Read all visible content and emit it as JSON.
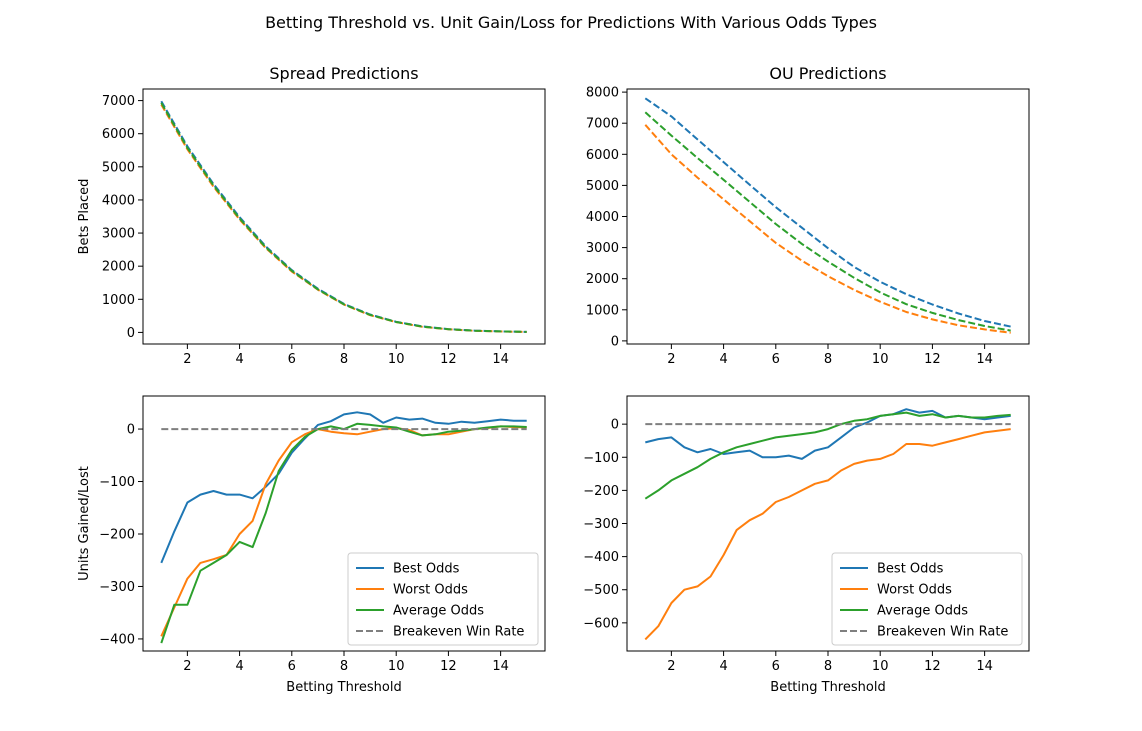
{
  "figure_title": "Betting Threshold vs. Unit Gain/Loss for Predictions With Various Odds Types",
  "colors": {
    "best": "#1f77b4",
    "worst": "#ff7f0e",
    "average": "#2ca02c",
    "breakeven": "#7f7f7f"
  },
  "chart_data": [
    {
      "id": "spread-bets",
      "type": "line",
      "title": "Spread Predictions",
      "xlabel": "",
      "ylabel": "Bets Placed",
      "xlim": [
        0.3,
        15.7
      ],
      "ylim": [
        -350,
        7350
      ],
      "xticks": [
        2,
        4,
        6,
        8,
        10,
        12,
        14
      ],
      "yticks": [
        0,
        1000,
        2000,
        3000,
        4000,
        5000,
        6000,
        7000
      ],
      "line_style": "dashed",
      "legend": false,
      "x": [
        1,
        2,
        3,
        4,
        5,
        6,
        7,
        8,
        9,
        10,
        11,
        12,
        13,
        14,
        15
      ],
      "series": [
        {
          "key": "best",
          "values": [
            6980,
            5620,
            4480,
            3480,
            2600,
            1880,
            1320,
            860,
            540,
            320,
            180,
            100,
            55,
            30,
            15
          ]
        },
        {
          "key": "worst",
          "values": [
            6880,
            5530,
            4400,
            3410,
            2550,
            1840,
            1290,
            840,
            520,
            310,
            170,
            95,
            50,
            28,
            13
          ]
        },
        {
          "key": "average",
          "values": [
            6930,
            5570,
            4440,
            3440,
            2570,
            1860,
            1300,
            845,
            530,
            315,
            175,
            97,
            52,
            29,
            14
          ]
        }
      ]
    },
    {
      "id": "ou-bets",
      "type": "line",
      "title": "OU Predictions",
      "xlabel": "",
      "ylabel": "",
      "xlim": [
        0.3,
        15.7
      ],
      "ylim": [
        -100,
        8100
      ],
      "xticks": [
        2,
        4,
        6,
        8,
        10,
        12,
        14
      ],
      "yticks": [
        0,
        1000,
        2000,
        3000,
        4000,
        5000,
        6000,
        7000,
        8000
      ],
      "line_style": "dashed",
      "legend": false,
      "x": [
        1,
        2,
        3,
        4,
        5,
        6,
        7,
        8,
        9,
        10,
        11,
        12,
        13,
        14,
        15
      ],
      "series": [
        {
          "key": "best",
          "values": [
            7800,
            7220,
            6480,
            5750,
            5020,
            4300,
            3640,
            2980,
            2380,
            1900,
            1500,
            1170,
            880,
            640,
            460
          ]
        },
        {
          "key": "worst",
          "values": [
            6950,
            6000,
            5250,
            4550,
            3850,
            3150,
            2580,
            2080,
            1640,
            1260,
            930,
            690,
            500,
            370,
            260
          ]
        },
        {
          "key": "average",
          "values": [
            7350,
            6600,
            5880,
            5180,
            4470,
            3760,
            3120,
            2550,
            2030,
            1560,
            1180,
            900,
            670,
            480,
            330
          ]
        }
      ]
    },
    {
      "id": "spread-units",
      "type": "line",
      "title": "",
      "xlabel": "Betting Threshold",
      "ylabel": "Units Gained/Lost",
      "xlim": [
        0.3,
        15.7
      ],
      "ylim": [
        -423,
        63
      ],
      "xticks": [
        2,
        4,
        6,
        8,
        10,
        12,
        14
      ],
      "yticks": [
        -400,
        -300,
        -200,
        -100,
        0
      ],
      "line_style": "solid",
      "legend": true,
      "legend_position": "lower-right",
      "x": [
        1,
        1.5,
        2,
        2.5,
        3,
        3.5,
        4,
        4.5,
        5,
        5.5,
        6,
        6.5,
        7,
        7.5,
        8,
        8.5,
        9,
        9.5,
        10,
        10.5,
        11,
        11.5,
        12,
        12.5,
        13,
        13.5,
        14,
        14.5,
        15
      ],
      "series": [
        {
          "key": "best",
          "values": [
            -255,
            -195,
            -140,
            -125,
            -118,
            -125,
            -125,
            -132,
            -110,
            -85,
            -45,
            -18,
            8,
            15,
            28,
            32,
            28,
            12,
            22,
            18,
            20,
            12,
            10,
            14,
            12,
            15,
            18,
            16,
            16
          ]
        },
        {
          "key": "worst",
          "values": [
            -395,
            -340,
            -285,
            -255,
            -248,
            -240,
            -200,
            -175,
            -105,
            -60,
            -25,
            -10,
            0,
            -5,
            -8,
            -10,
            -5,
            0,
            2,
            -2,
            -12,
            -10,
            -10,
            -5,
            0,
            2,
            5,
            4,
            3
          ]
        },
        {
          "key": "average",
          "values": [
            -408,
            -335,
            -335,
            -270,
            -255,
            -240,
            -215,
            -225,
            -160,
            -80,
            -40,
            -15,
            0,
            5,
            0,
            10,
            8,
            5,
            3,
            -5,
            -12,
            -10,
            -5,
            -3,
            0,
            3,
            5,
            5,
            4
          ]
        },
        {
          "key": "breakeven",
          "values": [
            0,
            0,
            0,
            0,
            0,
            0,
            0,
            0,
            0,
            0,
            0,
            0,
            0,
            0,
            0,
            0,
            0,
            0,
            0,
            0,
            0,
            0,
            0,
            0,
            0,
            0,
            0,
            0,
            0
          ]
        }
      ]
    },
    {
      "id": "ou-units",
      "type": "line",
      "title": "",
      "xlabel": "Betting Threshold",
      "ylabel": "",
      "xlim": [
        0.3,
        15.7
      ],
      "ylim": [
        -685,
        85
      ],
      "xticks": [
        2,
        4,
        6,
        8,
        10,
        12,
        14
      ],
      "yticks": [
        -600,
        -500,
        -400,
        -300,
        -200,
        -100,
        0
      ],
      "line_style": "solid",
      "legend": true,
      "legend_position": "lower-right",
      "x": [
        1,
        1.5,
        2,
        2.5,
        3,
        3.5,
        4,
        4.5,
        5,
        5.5,
        6,
        6.5,
        7,
        7.5,
        8,
        8.5,
        9,
        9.5,
        10,
        10.5,
        11,
        11.5,
        12,
        12.5,
        13,
        13.5,
        14,
        14.5,
        15
      ],
      "series": [
        {
          "key": "best",
          "values": [
            -55,
            -45,
            -40,
            -70,
            -85,
            -75,
            -90,
            -85,
            -80,
            -100,
            -100,
            -95,
            -105,
            -80,
            -70,
            -40,
            -10,
            5,
            25,
            30,
            45,
            35,
            40,
            20,
            25,
            20,
            15,
            20,
            25
          ]
        },
        {
          "key": "worst",
          "values": [
            -650,
            -610,
            -540,
            -500,
            -490,
            -460,
            -395,
            -320,
            -290,
            -270,
            -235,
            -220,
            -200,
            -180,
            -170,
            -140,
            -120,
            -110,
            -105,
            -90,
            -60,
            -60,
            -65,
            -55,
            -45,
            -35,
            -25,
            -20,
            -15
          ]
        },
        {
          "key": "average",
          "values": [
            -225,
            -200,
            -170,
            -150,
            -130,
            -105,
            -85,
            -70,
            -60,
            -50,
            -40,
            -35,
            -30,
            -25,
            -15,
            0,
            10,
            15,
            25,
            30,
            35,
            25,
            30,
            20,
            25,
            20,
            20,
            25,
            28
          ]
        },
        {
          "key": "breakeven",
          "values": [
            0,
            0,
            0,
            0,
            0,
            0,
            0,
            0,
            0,
            0,
            0,
            0,
            0,
            0,
            0,
            0,
            0,
            0,
            0,
            0,
            0,
            0,
            0,
            0,
            0,
            0,
            0,
            0,
            0
          ]
        }
      ]
    }
  ],
  "legend": {
    "best": "Best Odds",
    "worst": "Worst Odds",
    "average": "Average Odds",
    "breakeven": "Breakeven Win Rate"
  }
}
